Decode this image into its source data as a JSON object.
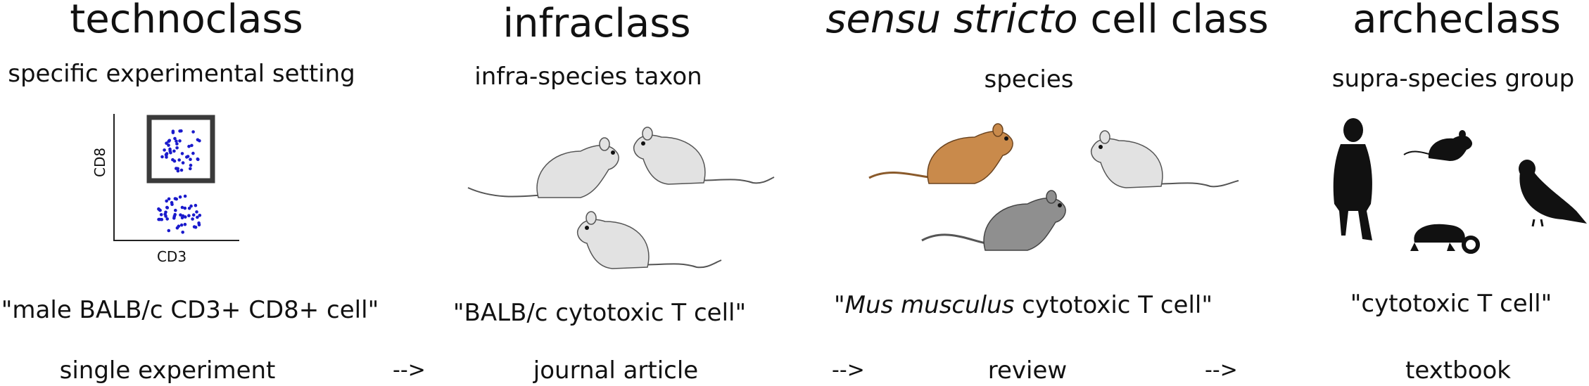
{
  "columns": [
    {
      "title": "technoclass",
      "subtitle": "specific experimental setting",
      "example_label": "\"male BALB/c CD3+ CD8+ cell\"",
      "source": "single experiment"
    },
    {
      "title": "infraclass",
      "subtitle": "infra-species taxon",
      "example_label": "\"BALB/c cytotoxic T cell\"",
      "source": "journal article"
    },
    {
      "title_italic": "sensu stricto",
      "title_rest": " cell class",
      "subtitle": "species",
      "example_open": "\"",
      "example_italic": "Mus musculus",
      "example_rest": " cytotoxic T cell\"",
      "source": "review"
    },
    {
      "title": "archeclass",
      "subtitle": "supra-species group",
      "example_label": "\"cytotoxic T cell\"",
      "source": "textbook"
    }
  ],
  "arrows": [
    "-->",
    "-->",
    "-->"
  ],
  "flow_plot": {
    "x_axis_label": "CD3",
    "y_axis_label": "CD8",
    "dot_color": "#1a1acc"
  },
  "colors": {
    "mouse_light": "#e2e2e2",
    "mouse_brown": "#c98a4b",
    "mouse_grey": "#8f8f8f",
    "silhouette": "#111111"
  },
  "icons": [
    "white-mouse-icon",
    "brown-mouse-icon",
    "grey-mouse-icon",
    "human-silhouette-icon",
    "black-mouse-icon",
    "chameleon-icon",
    "pigeon-icon"
  ]
}
